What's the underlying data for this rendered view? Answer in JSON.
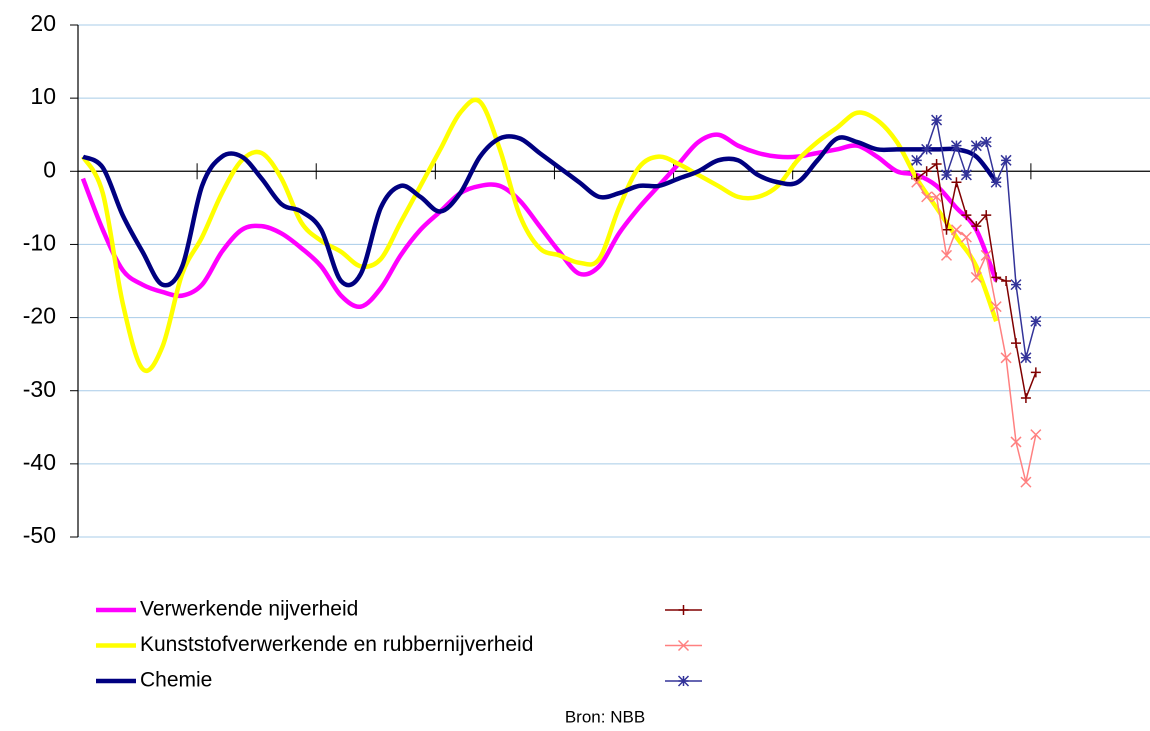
{
  "chart_data": {
    "type": "line",
    "source": "Bron: NBB",
    "xlim": [
      0,
      108
    ],
    "xticks": [
      0,
      12,
      24,
      36,
      48,
      60,
      72,
      84,
      96
    ],
    "ylim": [
      -50,
      20
    ],
    "yticks": [
      -50,
      -40,
      -30,
      -20,
      -10,
      0,
      10,
      20
    ],
    "grid": true,
    "series": [
      {
        "name": "Verwerkende nijverheid",
        "color": "#ff00ff",
        "smooth": true,
        "x": [
          0.5,
          2.5,
          4.5,
          6.5,
          8.5,
          10.5,
          12.5,
          14.5,
          16.5,
          18.5,
          20.5,
          22.5,
          24.5,
          26.5,
          28.5,
          30.5,
          32.5,
          34.5,
          36.5,
          38.5,
          40.5,
          42.5,
          44.5,
          46.5,
          48.5,
          50.5,
          52.5,
          54.5,
          56.5,
          58.5,
          60.5,
          62.5,
          64.5,
          66.5,
          68.5,
          70.5,
          72.5,
          74.5,
          76.5,
          78.5,
          80.5,
          82.5,
          84.5,
          86.5,
          88.5,
          90.5,
          92.5
        ],
        "values": [
          -1,
          -8,
          -13.5,
          -15.5,
          -16.5,
          -17,
          -15.5,
          -11,
          -8,
          -7.5,
          -8.5,
          -10.5,
          -13,
          -17,
          -18.5,
          -16,
          -11.5,
          -8,
          -5.5,
          -3,
          -2,
          -2,
          -4,
          -7.5,
          -11,
          -14,
          -13,
          -8.5,
          -5,
          -2,
          1,
          4,
          5,
          3.5,
          2.5,
          2,
          2,
          2.5,
          3,
          3.5,
          2,
          0,
          -0.5,
          -2,
          -5,
          -8,
          -15
        ]
      },
      {
        "name": "Kunststofverwerkende en rubbernijverheid",
        "color": "#ffff00",
        "smooth": true,
        "x": [
          0.5,
          2.5,
          4.5,
          6.5,
          8.5,
          10.5,
          12.5,
          14.5,
          16.5,
          18.5,
          20.5,
          22.5,
          24.5,
          26.5,
          28.5,
          30.5,
          32.5,
          34.5,
          36.5,
          38.5,
          40.5,
          42.5,
          44.5,
          46.5,
          48.5,
          50.5,
          52.5,
          54.5,
          56.5,
          58.5,
          60.5,
          62.5,
          64.5,
          66.5,
          68.5,
          70.5,
          72.5,
          74.5,
          76.5,
          78.5,
          80.5,
          82.5,
          84.5,
          86.5,
          88.5,
          90.5,
          92.5
        ],
        "values": [
          2,
          -3,
          -18,
          -27,
          -24,
          -14,
          -9,
          -3,
          1.5,
          2.5,
          -1,
          -7,
          -9.5,
          -11,
          -13,
          -12,
          -7,
          -2,
          3,
          8,
          9.5,
          3,
          -6,
          -10.5,
          -11.5,
          -12.5,
          -12,
          -5,
          0.5,
          2,
          1,
          -0.5,
          -2,
          -3.5,
          -3.5,
          -2,
          1.5,
          4,
          6,
          8,
          7,
          4,
          -1,
          -5,
          -9,
          -13,
          -20.5
        ]
      },
      {
        "name": "Chemie",
        "color": "#000080",
        "smooth": true,
        "x": [
          0.5,
          2.5,
          4.5,
          6.5,
          8.5,
          10.5,
          12.5,
          14.5,
          16.5,
          18.5,
          20.5,
          22.5,
          24.5,
          26.5,
          28.5,
          30.5,
          32.5,
          34.5,
          36.5,
          38.5,
          40.5,
          42.5,
          44.5,
          46.5,
          48.5,
          50.5,
          52.5,
          54.5,
          56.5,
          58.5,
          60.5,
          62.5,
          64.5,
          66.5,
          68.5,
          70.5,
          72.5,
          74.5,
          76.5,
          78.5,
          80.5,
          82.5,
          84.5,
          86.5,
          88.5,
          90.5,
          92.5
        ],
        "values": [
          2,
          0.5,
          -6,
          -11,
          -15.5,
          -13,
          -2,
          2,
          2,
          -1,
          -4.5,
          -5.5,
          -8,
          -15,
          -14,
          -5,
          -2,
          -3.5,
          -5.5,
          -3,
          2,
          4.5,
          4.5,
          2.5,
          0.5,
          -1.5,
          -3.5,
          -3,
          -2,
          -2,
          -1,
          0,
          1.5,
          1.5,
          -0.5,
          -1.5,
          -1.5,
          1.5,
          4.5,
          4,
          3,
          3,
          3,
          3,
          3,
          2,
          -1.5
        ]
      },
      {
        "color": "#800000",
        "marker": "plus",
        "x": [
          84.5,
          85.5,
          86.5,
          87.5,
          88.5,
          89.5,
          90.5,
          91.5,
          92.5,
          93.5,
          94.5,
          95.5,
          96.5
        ],
        "values": [
          -1,
          0,
          1,
          -8,
          -1.5,
          -6,
          -7.5,
          -6,
          -14.5,
          -15,
          -23.5,
          -31,
          -27.5
        ]
      },
      {
        "color": "#ff8080",
        "marker": "x",
        "x": [
          84.5,
          85.5,
          86.5,
          87.5,
          88.5,
          89.5,
          90.5,
          91.5,
          92.5,
          93.5,
          94.5,
          95.5,
          96.5
        ],
        "values": [
          -1.5,
          -3.5,
          -3.5,
          -11.5,
          -8,
          -9,
          -14.5,
          -11.5,
          -18.5,
          -25.5,
          -37,
          -42.5,
          -36
        ]
      },
      {
        "color": "#333399",
        "marker": "star",
        "x": [
          84.5,
          85.5,
          86.5,
          87.5,
          88.5,
          89.5,
          90.5,
          91.5,
          92.5,
          93.5,
          94.5,
          95.5,
          96.5
        ],
        "values": [
          1.5,
          3,
          7,
          -0.5,
          3.5,
          -0.5,
          3.5,
          4,
          -1.5,
          1.5,
          -15.5,
          -25.5,
          -20.5
        ]
      }
    ]
  }
}
